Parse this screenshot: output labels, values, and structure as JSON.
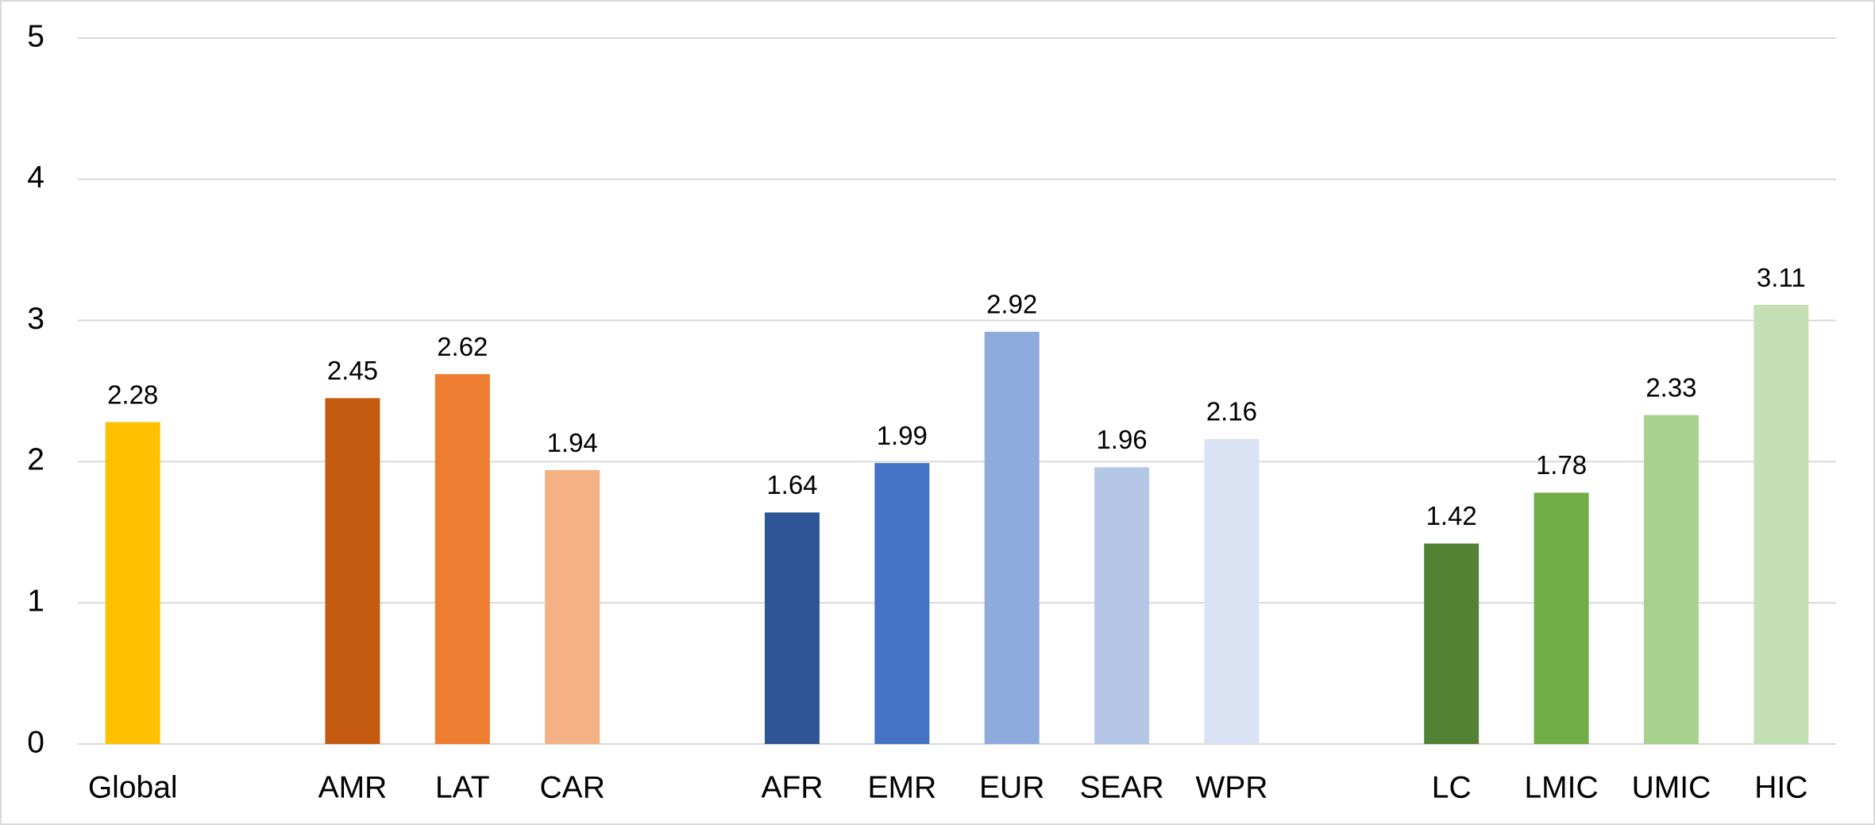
{
  "chart_data": {
    "type": "bar",
    "categories": [
      "Global",
      null,
      "AMR",
      "LAT",
      "CAR",
      null,
      "AFR",
      "EMR",
      "EUR",
      "SEAR",
      "WPR",
      null,
      "LC",
      "LMIC",
      "UMIC",
      "HIC"
    ],
    "values": [
      2.28,
      null,
      2.45,
      2.62,
      1.94,
      null,
      1.64,
      1.99,
      2.92,
      1.96,
      2.16,
      null,
      1.42,
      1.78,
      2.33,
      3.11
    ],
    "colors": [
      "#ffc000",
      null,
      "#c55a11",
      "#ed7d31",
      "#f4b183",
      null,
      "#2f5597",
      "#4472c4",
      "#8faadc",
      "#b4c7e7",
      "#dae3f3",
      null,
      "#548235",
      "#70ad47",
      "#a9d18e",
      "#c5e0b4"
    ],
    "ylim": [
      0,
      5
    ],
    "yticks": [
      0,
      1,
      2,
      3,
      4,
      5
    ],
    "grid": true
  }
}
